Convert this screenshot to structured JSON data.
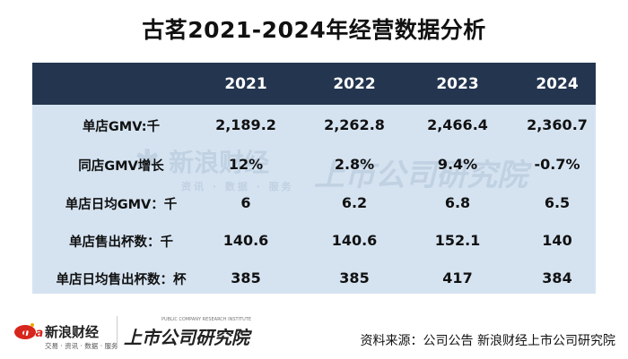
{
  "title": "古茗2021-2024年经营数据分析",
  "table": {
    "years": [
      "2021",
      "2022",
      "2023",
      "2024"
    ],
    "rows": [
      {
        "label": "单店GMV:千",
        "values": [
          "2,189.2",
          "2,262.8",
          "2,466.4",
          "2,360.7"
        ]
      },
      {
        "label": "同店GMV增长",
        "values": [
          "12%",
          "2.8%",
          "9.4%",
          "-0.7%"
        ]
      },
      {
        "label": "单店日均GMV：千",
        "values": [
          "6",
          "6.2",
          "6.8",
          "6.5"
        ]
      },
      {
        "label": "单店售出杯数：千",
        "values": [
          "140.6",
          "140.6",
          "152.1",
          "140"
        ]
      },
      {
        "label": "单店日均售出杯数：杯",
        "values": [
          "385",
          "385",
          "417",
          "384"
        ]
      }
    ]
  },
  "watermark": {
    "sina_brand": "新浪财经",
    "sina_sub": "资讯 · 数据 · 服务",
    "company": "上市公司研究院"
  },
  "footer": {
    "sina_logo_text": "sina",
    "sina_brand": "新浪财经",
    "sina_sub": "交易 · 资讯 · 数据 · 服务",
    "company_logo": "上市公司研究院",
    "company_logo_en": "PUBLIC COMPANY RESEARCH INSTITUTE",
    "source": "资料来源：公司公告 新浪财经上市公司研究院"
  },
  "colors": {
    "header_bg": "#23354f",
    "table_bg": "#d5e3f1",
    "sina_red": "#d7261d"
  }
}
